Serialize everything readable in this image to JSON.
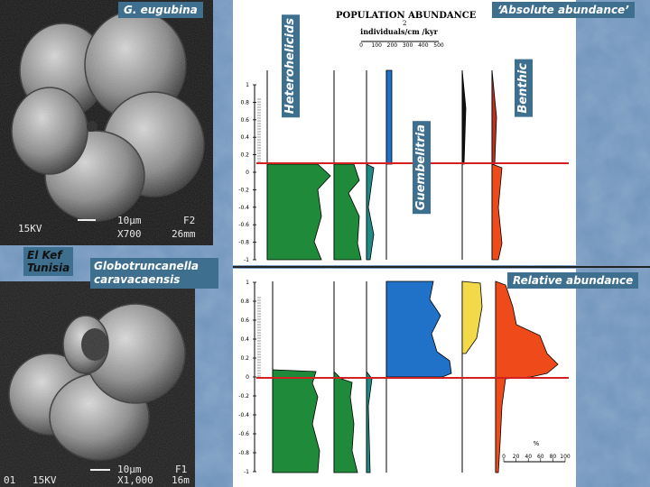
{
  "labels": {
    "species_top": "G. eugubina",
    "location_line1": "El Kef",
    "location_line2": "Tunisia",
    "species_bottom_line1": "Globotruncanella",
    "species_bottom_line2": "caravacaensis",
    "absolute": "‘Absolute abundance’",
    "relative": "Relative abundance",
    "heterohelicids": "Heterohelicids",
    "guembelitria": "Guembelitria",
    "benthic": "Benthic"
  },
  "sem_top": {
    "kv": "15KV",
    "scale": "10µm",
    "frame": "F2",
    "mag": "X700",
    "wd": "26mm"
  },
  "sem_bottom": {
    "num": "01",
    "kv": "15KV",
    "scale": "10µm",
    "frame": "F1",
    "mag": "X1,000",
    "wd": "16m"
  },
  "header": {
    "title": "POPULATION ABUNDANCE",
    "sub_exp": "2",
    "units": "individuals/cm /kyr",
    "ticks": [
      "0",
      "100",
      "200",
      "300",
      "400",
      "500"
    ]
  },
  "axis_ticks": [
    "1",
    "0.8",
    "0.6",
    "0.4",
    "0.2",
    "0",
    "-0.2",
    "-0.4",
    "-0.6",
    "-0.8",
    "-1"
  ],
  "percent_axis": {
    "label": "%",
    "ticks": [
      "0",
      "20",
      "40",
      "60",
      "80",
      "100"
    ]
  },
  "colors": {
    "green": "#1e8a3a",
    "teal": "#1f8a86",
    "blue": "#1f72c8",
    "yellow": "#f2d94a",
    "red": "#ef4a1a",
    "boundary": "#d42020",
    "tag": "#3e6f8e"
  }
}
